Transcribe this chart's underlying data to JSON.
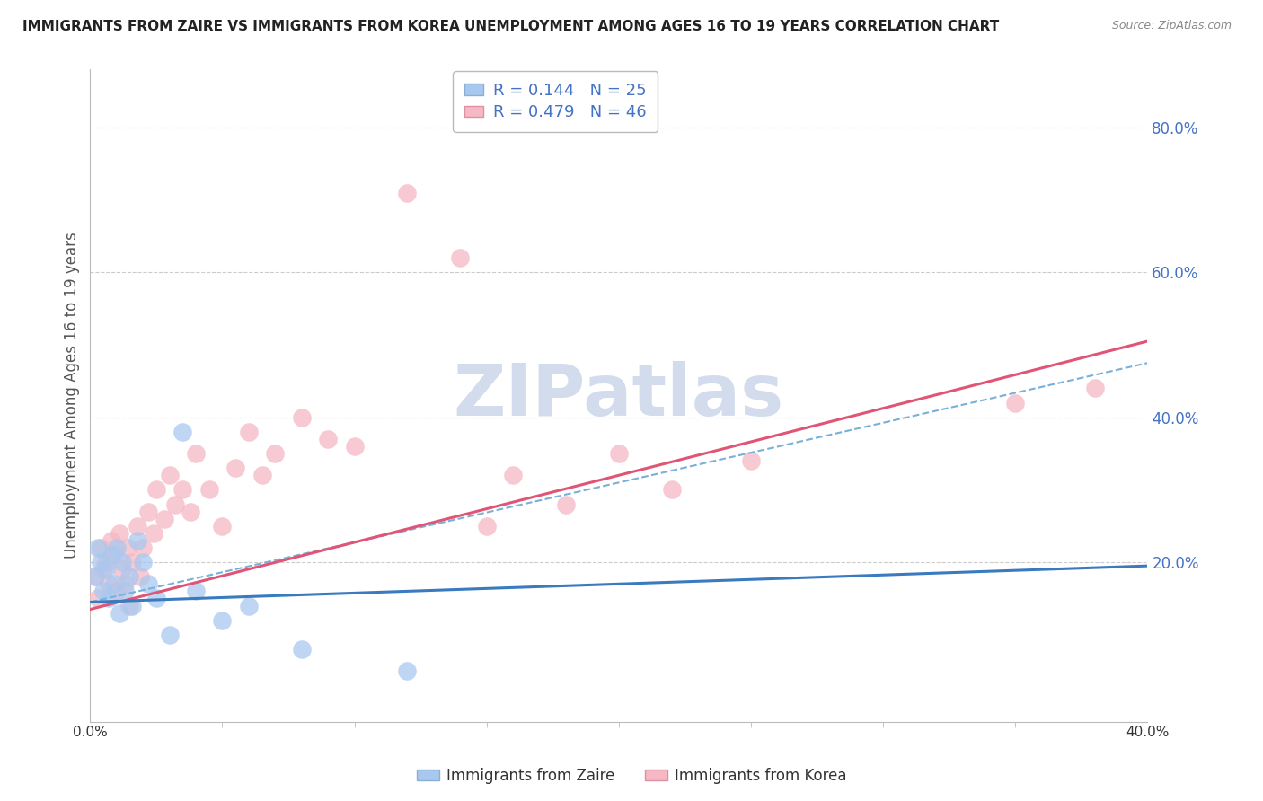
{
  "title": "IMMIGRANTS FROM ZAIRE VS IMMIGRANTS FROM KOREA UNEMPLOYMENT AMONG AGES 16 TO 19 YEARS CORRELATION CHART",
  "source": "Source: ZipAtlas.com",
  "ylabel": "Unemployment Among Ages 16 to 19 years",
  "xlim": [
    0.0,
    0.4
  ],
  "ylim": [
    -0.02,
    0.88
  ],
  "yticks": [
    0.0,
    0.2,
    0.4,
    0.6,
    0.8
  ],
  "ytick_labels": [
    "",
    "20.0%",
    "40.0%",
    "60.0%",
    "80.0%"
  ],
  "xtick_labels": [
    "0.0%",
    "40.0%"
  ],
  "zaire_R": 0.144,
  "zaire_N": 25,
  "korea_R": 0.479,
  "korea_N": 46,
  "zaire_color": "#a8c8f0",
  "korea_color": "#f5b8c4",
  "zaire_line_color": "#3a7abf",
  "korea_line_color": "#e05575",
  "dash_line_color": "#7ab0d8",
  "watermark_color": "#cdd9ea",
  "background_color": "#ffffff",
  "zaire_line_y0": 0.145,
  "zaire_line_y1": 0.195,
  "korea_line_y0": 0.135,
  "korea_line_y1": 0.505,
  "dash_line_y0": 0.145,
  "dash_line_y1": 0.475,
  "zaire_x": [
    0.002,
    0.003,
    0.004,
    0.005,
    0.006,
    0.007,
    0.008,
    0.009,
    0.01,
    0.011,
    0.012,
    0.013,
    0.015,
    0.016,
    0.018,
    0.02,
    0.022,
    0.025,
    0.03,
    0.035,
    0.04,
    0.05,
    0.06,
    0.08,
    0.12
  ],
  "zaire_y": [
    0.18,
    0.22,
    0.2,
    0.16,
    0.19,
    0.15,
    0.21,
    0.17,
    0.22,
    0.13,
    0.2,
    0.16,
    0.18,
    0.14,
    0.23,
    0.2,
    0.17,
    0.15,
    0.1,
    0.38,
    0.16,
    0.12,
    0.14,
    0.08,
    0.05
  ],
  "korea_x": [
    0.002,
    0.003,
    0.004,
    0.005,
    0.006,
    0.007,
    0.008,
    0.009,
    0.01,
    0.011,
    0.012,
    0.013,
    0.014,
    0.015,
    0.016,
    0.018,
    0.019,
    0.02,
    0.022,
    0.024,
    0.025,
    0.028,
    0.03,
    0.032,
    0.035,
    0.038,
    0.04,
    0.045,
    0.05,
    0.055,
    0.06,
    0.065,
    0.07,
    0.08,
    0.09,
    0.1,
    0.12,
    0.14,
    0.15,
    0.16,
    0.18,
    0.2,
    0.22,
    0.25,
    0.35,
    0.38
  ],
  "korea_y": [
    0.18,
    0.15,
    0.22,
    0.19,
    0.2,
    0.17,
    0.23,
    0.21,
    0.16,
    0.24,
    0.19,
    0.17,
    0.22,
    0.14,
    0.2,
    0.25,
    0.18,
    0.22,
    0.27,
    0.24,
    0.3,
    0.26,
    0.32,
    0.28,
    0.3,
    0.27,
    0.35,
    0.3,
    0.25,
    0.33,
    0.38,
    0.32,
    0.35,
    0.4,
    0.37,
    0.36,
    0.71,
    0.62,
    0.25,
    0.32,
    0.28,
    0.35,
    0.3,
    0.34,
    0.42,
    0.44
  ]
}
